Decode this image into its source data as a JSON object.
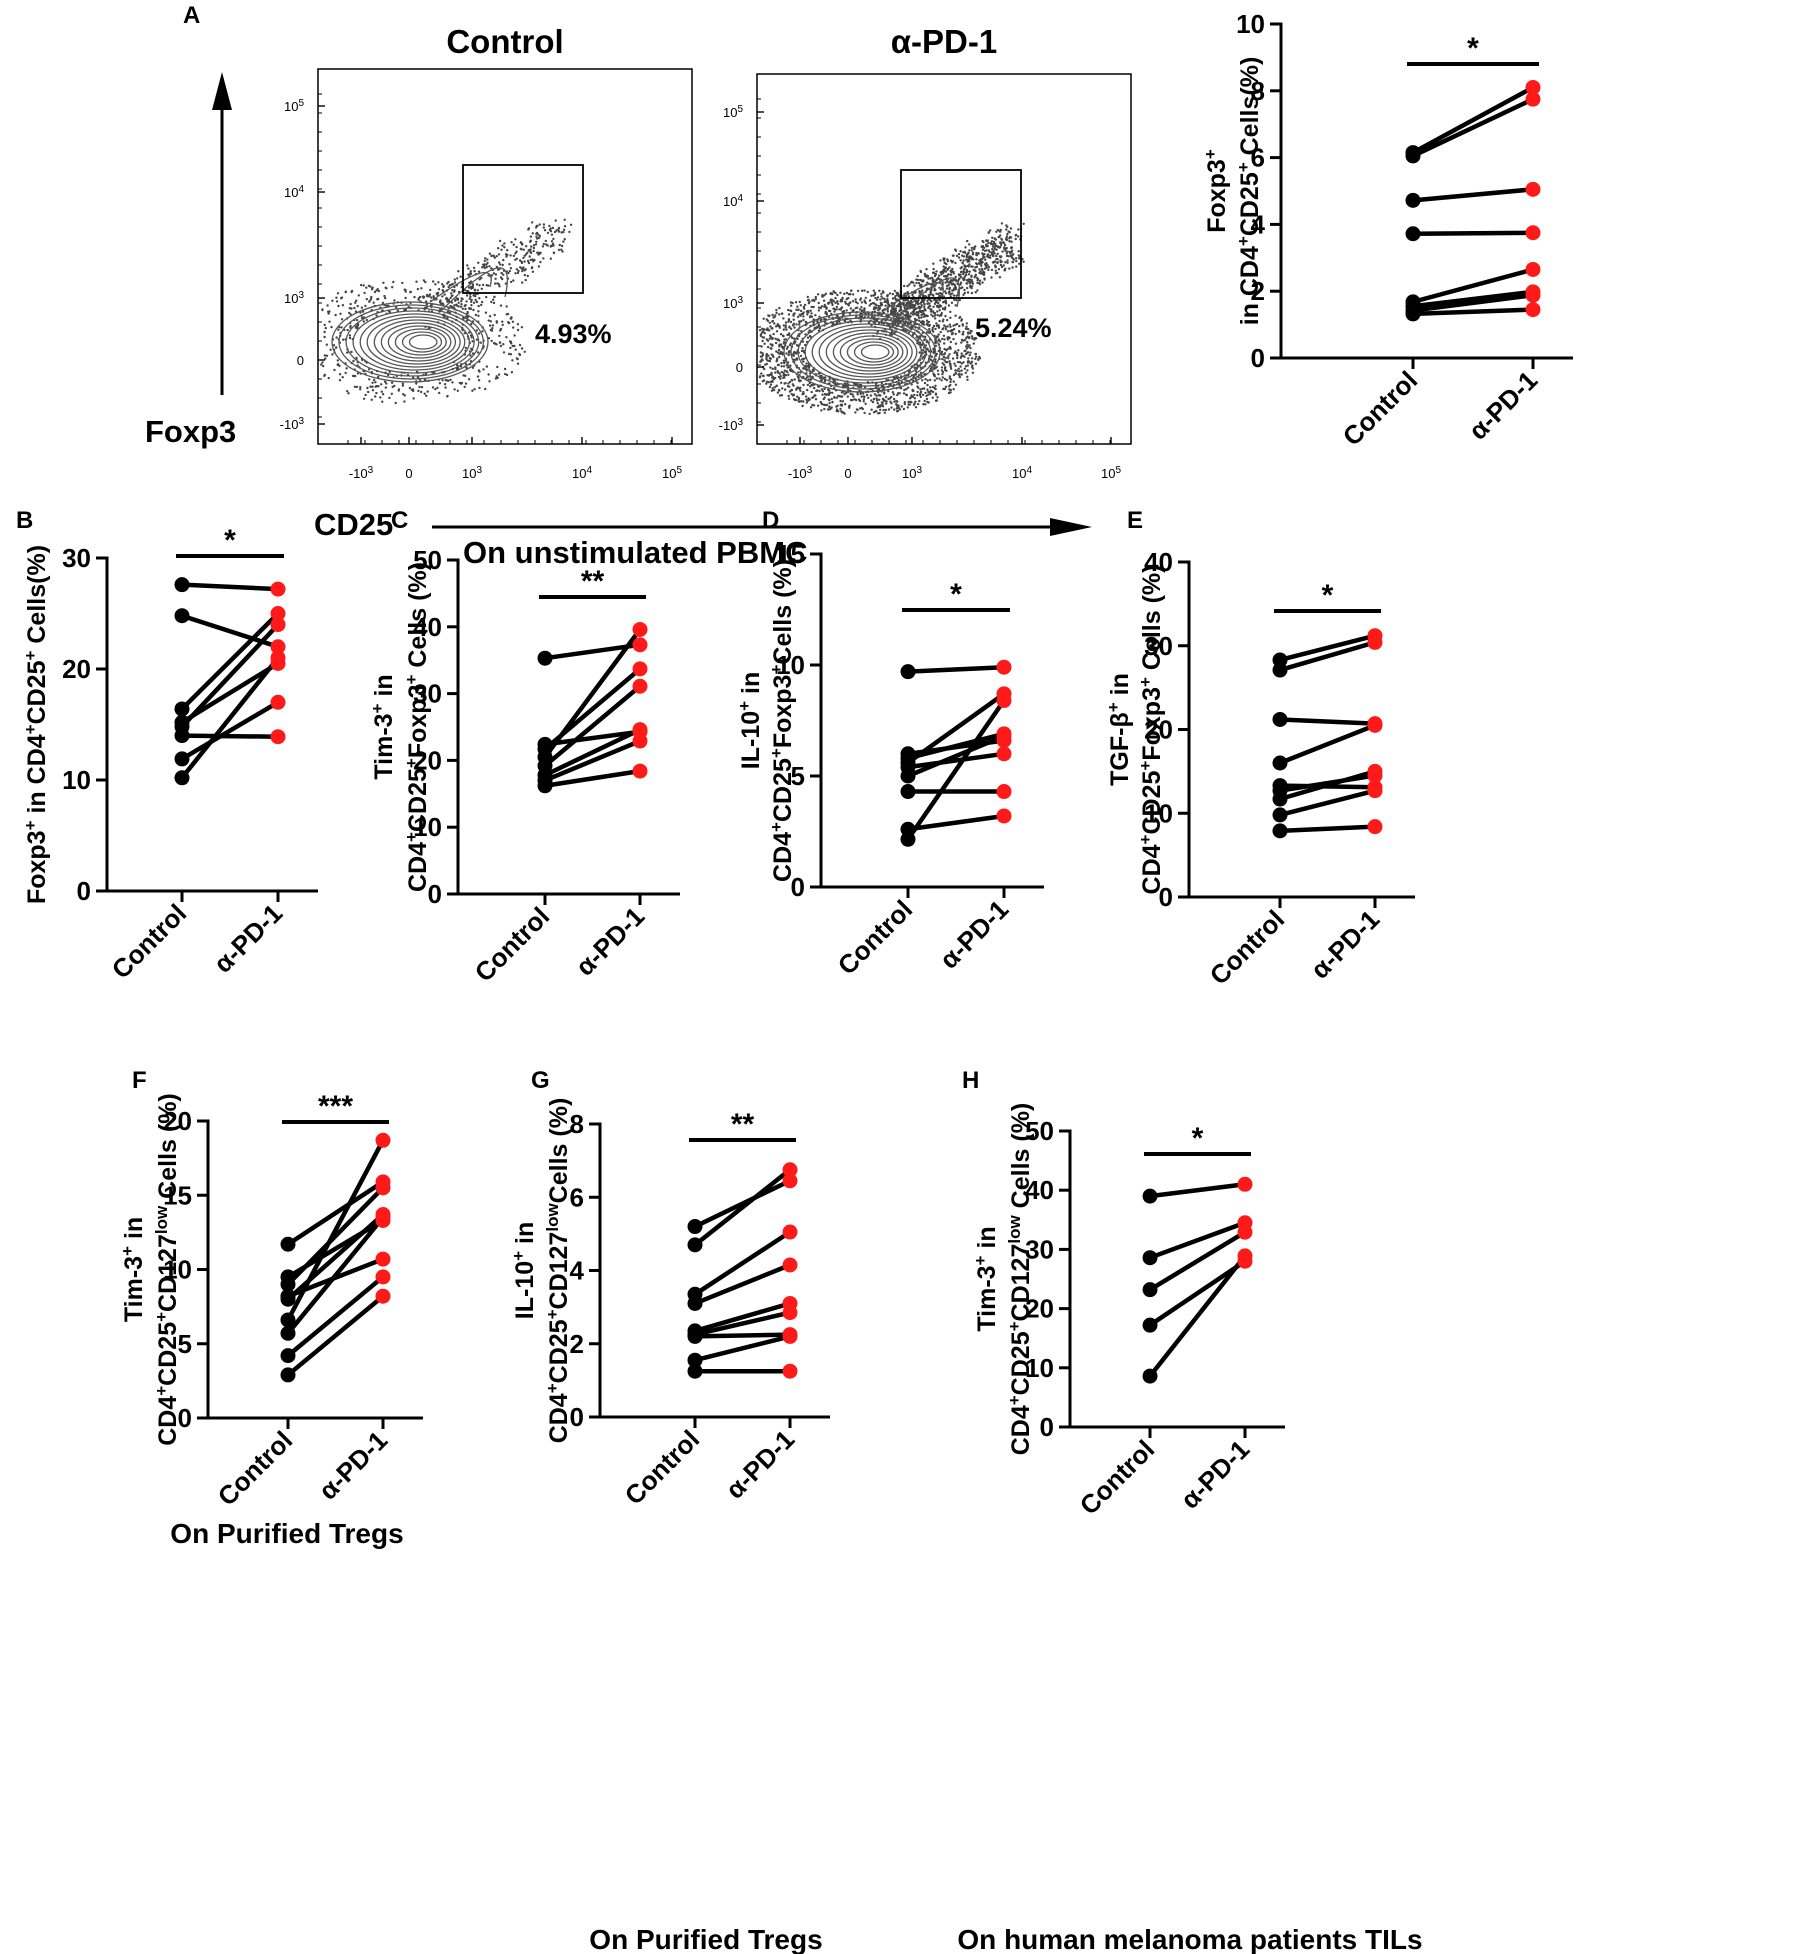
{
  "colors": {
    "control": "#000000",
    "treated": "#ff1a1a",
    "axis": "#000000",
    "plot": "#444444"
  },
  "chart_data": [
    {
      "id": "A-flow",
      "type": "scatter",
      "panel_label": "A",
      "y_axis_title": "Foxp3",
      "x_axis_title": "CD25",
      "x_axis_caption": "On unstimulated PBMC",
      "x_ticks": [
        {
          "base": "-10",
          "exp": "3",
          "v": -1000
        },
        {
          "base": "0",
          "exp": "",
          "v": 0
        },
        {
          "base": "10",
          "exp": "3",
          "v": 1000
        },
        {
          "base": "10",
          "exp": "4",
          "v": 10000
        },
        {
          "base": "10",
          "exp": "5",
          "v": 100000
        }
      ],
      "y_ticks": [
        {
          "base": "-10",
          "exp": "3",
          "v": -1000
        },
        {
          "base": "0",
          "exp": "",
          "v": 0
        },
        {
          "base": "10",
          "exp": "3",
          "v": 1000
        },
        {
          "base": "10",
          "exp": "4",
          "v": 10000
        },
        {
          "base": "10",
          "exp": "5",
          "v": 100000
        }
      ],
      "plots": [
        {
          "title": "Control",
          "gate_percent": "4.93%"
        },
        {
          "title": "α-PD-1",
          "gate_percent": "5.24%"
        }
      ]
    },
    {
      "id": "A-paired",
      "type": "line",
      "panel_label": "",
      "ylabel_lines": [
        [
          {
            "t": "Foxp3"
          },
          {
            "t": "+",
            "sup": true
          }
        ],
        [
          {
            "t": "in CD4"
          },
          {
            "t": "+",
            "sup": true
          },
          {
            "t": "CD25"
          },
          {
            "t": "+",
            "sup": true
          },
          {
            "t": " Cells(%)"
          }
        ]
      ],
      "categories": [
        "Control",
        "α-PD-1"
      ],
      "ylim": [
        0,
        10
      ],
      "yticks": [
        0,
        2,
        4,
        6,
        8,
        10
      ],
      "pairs": [
        [
          6.15,
          8.1
        ],
        [
          6.05,
          7.75
        ],
        [
          4.72,
          5.05
        ],
        [
          3.72,
          3.75
        ],
        [
          1.68,
          2.65
        ],
        [
          1.55,
          1.98
        ],
        [
          1.42,
          1.88
        ],
        [
          1.32,
          1.45
        ]
      ],
      "significance": "*",
      "caption": ""
    },
    {
      "id": "B",
      "type": "line",
      "panel_label": "B",
      "ylabel_lines": [
        [
          {
            "t": "Foxp3"
          },
          {
            "t": "+",
            "sup": true
          },
          {
            "t": " in CD4"
          },
          {
            "t": "+",
            "sup": true
          },
          {
            "t": "CD25"
          },
          {
            "t": "+",
            "sup": true
          },
          {
            "t": " Cells(%)"
          }
        ]
      ],
      "categories": [
        "Control",
        "α-PD-1"
      ],
      "ylim": [
        0,
        30
      ],
      "yticks": [
        0,
        10,
        20,
        30
      ],
      "pairs": [
        [
          27.6,
          27.2
        ],
        [
          24.8,
          22.0
        ],
        [
          16.4,
          25.0
        ],
        [
          15.2,
          20.5
        ],
        [
          14.8,
          24.0
        ],
        [
          14.0,
          13.9
        ],
        [
          11.9,
          17.0
        ],
        [
          10.2,
          21.0
        ]
      ],
      "significance": "*",
      "caption": ""
    },
    {
      "id": "C",
      "type": "line",
      "panel_label": "C",
      "ylabel_lines": [
        [
          {
            "t": "Tim-3"
          },
          {
            "t": "+",
            "sup": true
          },
          {
            "t": " in"
          }
        ],
        [
          {
            "t": "CD4"
          },
          {
            "t": "+",
            "sup": true
          },
          {
            "t": "CD25"
          },
          {
            "t": "+",
            "sup": true
          },
          {
            "t": "Foxp3"
          },
          {
            "t": "+",
            "sup": true
          },
          {
            "t": " Cells (%)"
          }
        ]
      ],
      "categories": [
        "Control",
        "α-PD-1"
      ],
      "ylim": [
        0,
        50
      ],
      "yticks": [
        0,
        10,
        20,
        30,
        40,
        50
      ],
      "pairs": [
        [
          35.3,
          37.3
        ],
        [
          22.4,
          24.3
        ],
        [
          21.7,
          33.7
        ],
        [
          20.5,
          39.6
        ],
        [
          19.2,
          31.1
        ],
        [
          17.8,
          24.6
        ],
        [
          17.0,
          22.9
        ],
        [
          16.2,
          18.4
        ]
      ],
      "significance": "**",
      "caption": ""
    },
    {
      "id": "D",
      "type": "line",
      "panel_label": "D",
      "ylabel_lines": [
        [
          {
            "t": "IL-10"
          },
          {
            "t": "+",
            "sup": true
          },
          {
            "t": " in"
          }
        ],
        [
          {
            "t": "CD4"
          },
          {
            "t": "+",
            "sup": true
          },
          {
            "t": "CD25"
          },
          {
            "t": "+",
            "sup": true
          },
          {
            "t": "Foxp3"
          },
          {
            "t": "+",
            "sup": true
          },
          {
            "t": "Cells (%)"
          }
        ]
      ],
      "categories": [
        "Control",
        "α-PD-1"
      ],
      "ylim": [
        0,
        15
      ],
      "yticks": [
        0,
        5,
        10,
        15
      ],
      "pairs": [
        [
          9.7,
          9.9
        ],
        [
          6.0,
          6.6
        ],
        [
          5.8,
          6.9
        ],
        [
          5.6,
          8.7
        ],
        [
          5.4,
          6.0
        ],
        [
          5.0,
          6.8
        ],
        [
          4.3,
          4.3
        ],
        [
          2.6,
          3.2
        ],
        [
          2.15,
          8.4
        ]
      ],
      "significance": "*",
      "caption": ""
    },
    {
      "id": "E",
      "type": "line",
      "panel_label": "E",
      "ylabel_lines": [
        [
          {
            "t": "TGF-β"
          },
          {
            "t": "+",
            "sup": true
          },
          {
            "t": " in"
          }
        ],
        [
          {
            "t": "CD4"
          },
          {
            "t": "+",
            "sup": true
          },
          {
            "t": "CD25"
          },
          {
            "t": "+",
            "sup": true
          },
          {
            "t": "Foxp3"
          },
          {
            "t": "+",
            "sup": true
          },
          {
            "t": " Cells (%)"
          }
        ]
      ],
      "categories": [
        "Control",
        "α-PD-1"
      ],
      "ylim": [
        0,
        40
      ],
      "yticks": [
        0,
        10,
        20,
        30,
        40
      ],
      "pairs": [
        [
          28.3,
          31.2
        ],
        [
          27.1,
          30.4
        ],
        [
          21.2,
          20.7
        ],
        [
          16.0,
          20.5
        ],
        [
          13.3,
          13.1
        ],
        [
          12.7,
          14.5
        ],
        [
          11.7,
          15.0
        ],
        [
          9.8,
          12.7
        ],
        [
          7.9,
          8.4
        ]
      ],
      "significance": "*",
      "caption": ""
    },
    {
      "id": "F",
      "type": "line",
      "panel_label": "F",
      "ylabel_lines": [
        [
          {
            "t": "Tim-3"
          },
          {
            "t": "+",
            "sup": true
          },
          {
            "t": " in"
          }
        ],
        [
          {
            "t": "CD4"
          },
          {
            "t": "+",
            "sup": true
          },
          {
            "t": "CD25"
          },
          {
            "t": "+",
            "sup": true
          },
          {
            "t": "CD127"
          },
          {
            "t": "low",
            "sup": true
          },
          {
            "t": " Cells (%)"
          }
        ]
      ],
      "categories": [
        "Control",
        "α-PD-1"
      ],
      "ylim": [
        0,
        20
      ],
      "yticks": [
        0,
        5,
        10,
        15,
        20
      ],
      "pairs": [
        [
          11.7,
          15.9
        ],
        [
          9.5,
          13.3
        ],
        [
          9.0,
          15.5
        ],
        [
          8.2,
          10.7
        ],
        [
          8.0,
          13.7
        ],
        [
          6.6,
          18.7
        ],
        [
          5.7,
          13.5
        ],
        [
          4.2,
          9.5
        ],
        [
          2.9,
          8.2
        ]
      ],
      "significance": "***",
      "caption": "On Purified Tregs"
    },
    {
      "id": "G",
      "type": "line",
      "panel_label": "G",
      "ylabel_lines": [
        [
          {
            "t": "IL-10"
          },
          {
            "t": "+",
            "sup": true
          },
          {
            "t": " in"
          }
        ],
        [
          {
            "t": "CD4"
          },
          {
            "t": "+",
            "sup": true
          },
          {
            "t": "CD25"
          },
          {
            "t": "+",
            "sup": true
          },
          {
            "t": "CD127"
          },
          {
            "t": "low",
            "sup": true
          },
          {
            "t": "Cells (%)"
          }
        ]
      ],
      "categories": [
        "Control",
        "α-PD-1"
      ],
      "ylim": [
        0,
        8
      ],
      "yticks": [
        0,
        2,
        4,
        6,
        8
      ],
      "pairs": [
        [
          5.2,
          6.45
        ],
        [
          4.7,
          6.75
        ],
        [
          3.35,
          5.05
        ],
        [
          3.1,
          4.15
        ],
        [
          2.35,
          3.1
        ],
        [
          2.25,
          2.85
        ],
        [
          2.2,
          2.25
        ],
        [
          1.55,
          2.2
        ],
        [
          1.25,
          1.25
        ]
      ],
      "significance": "**",
      "caption": "On Purified Tregs"
    },
    {
      "id": "H",
      "type": "line",
      "panel_label": "H",
      "ylabel_lines": [
        [
          {
            "t": "Tim-3"
          },
          {
            "t": "+",
            "sup": true
          },
          {
            "t": " in"
          }
        ],
        [
          {
            "t": "CD4"
          },
          {
            "t": "+",
            "sup": true
          },
          {
            "t": "CD25"
          },
          {
            "t": "+",
            "sup": true
          },
          {
            "t": "CD127"
          },
          {
            "t": "low",
            "sup": true
          },
          {
            "t": " Cells (%)"
          }
        ]
      ],
      "categories": [
        "Control",
        "α-PD-1"
      ],
      "ylim": [
        0,
        50
      ],
      "yticks": [
        0,
        10,
        20,
        30,
        40,
        50
      ],
      "pairs": [
        [
          39.0,
          41.0
        ],
        [
          28.6,
          34.5
        ],
        [
          23.2,
          32.9
        ],
        [
          17.2,
          28.0
        ],
        [
          8.6,
          28.9
        ]
      ],
      "significance": "*",
      "caption": "On human melanoma patients TILs"
    }
  ]
}
